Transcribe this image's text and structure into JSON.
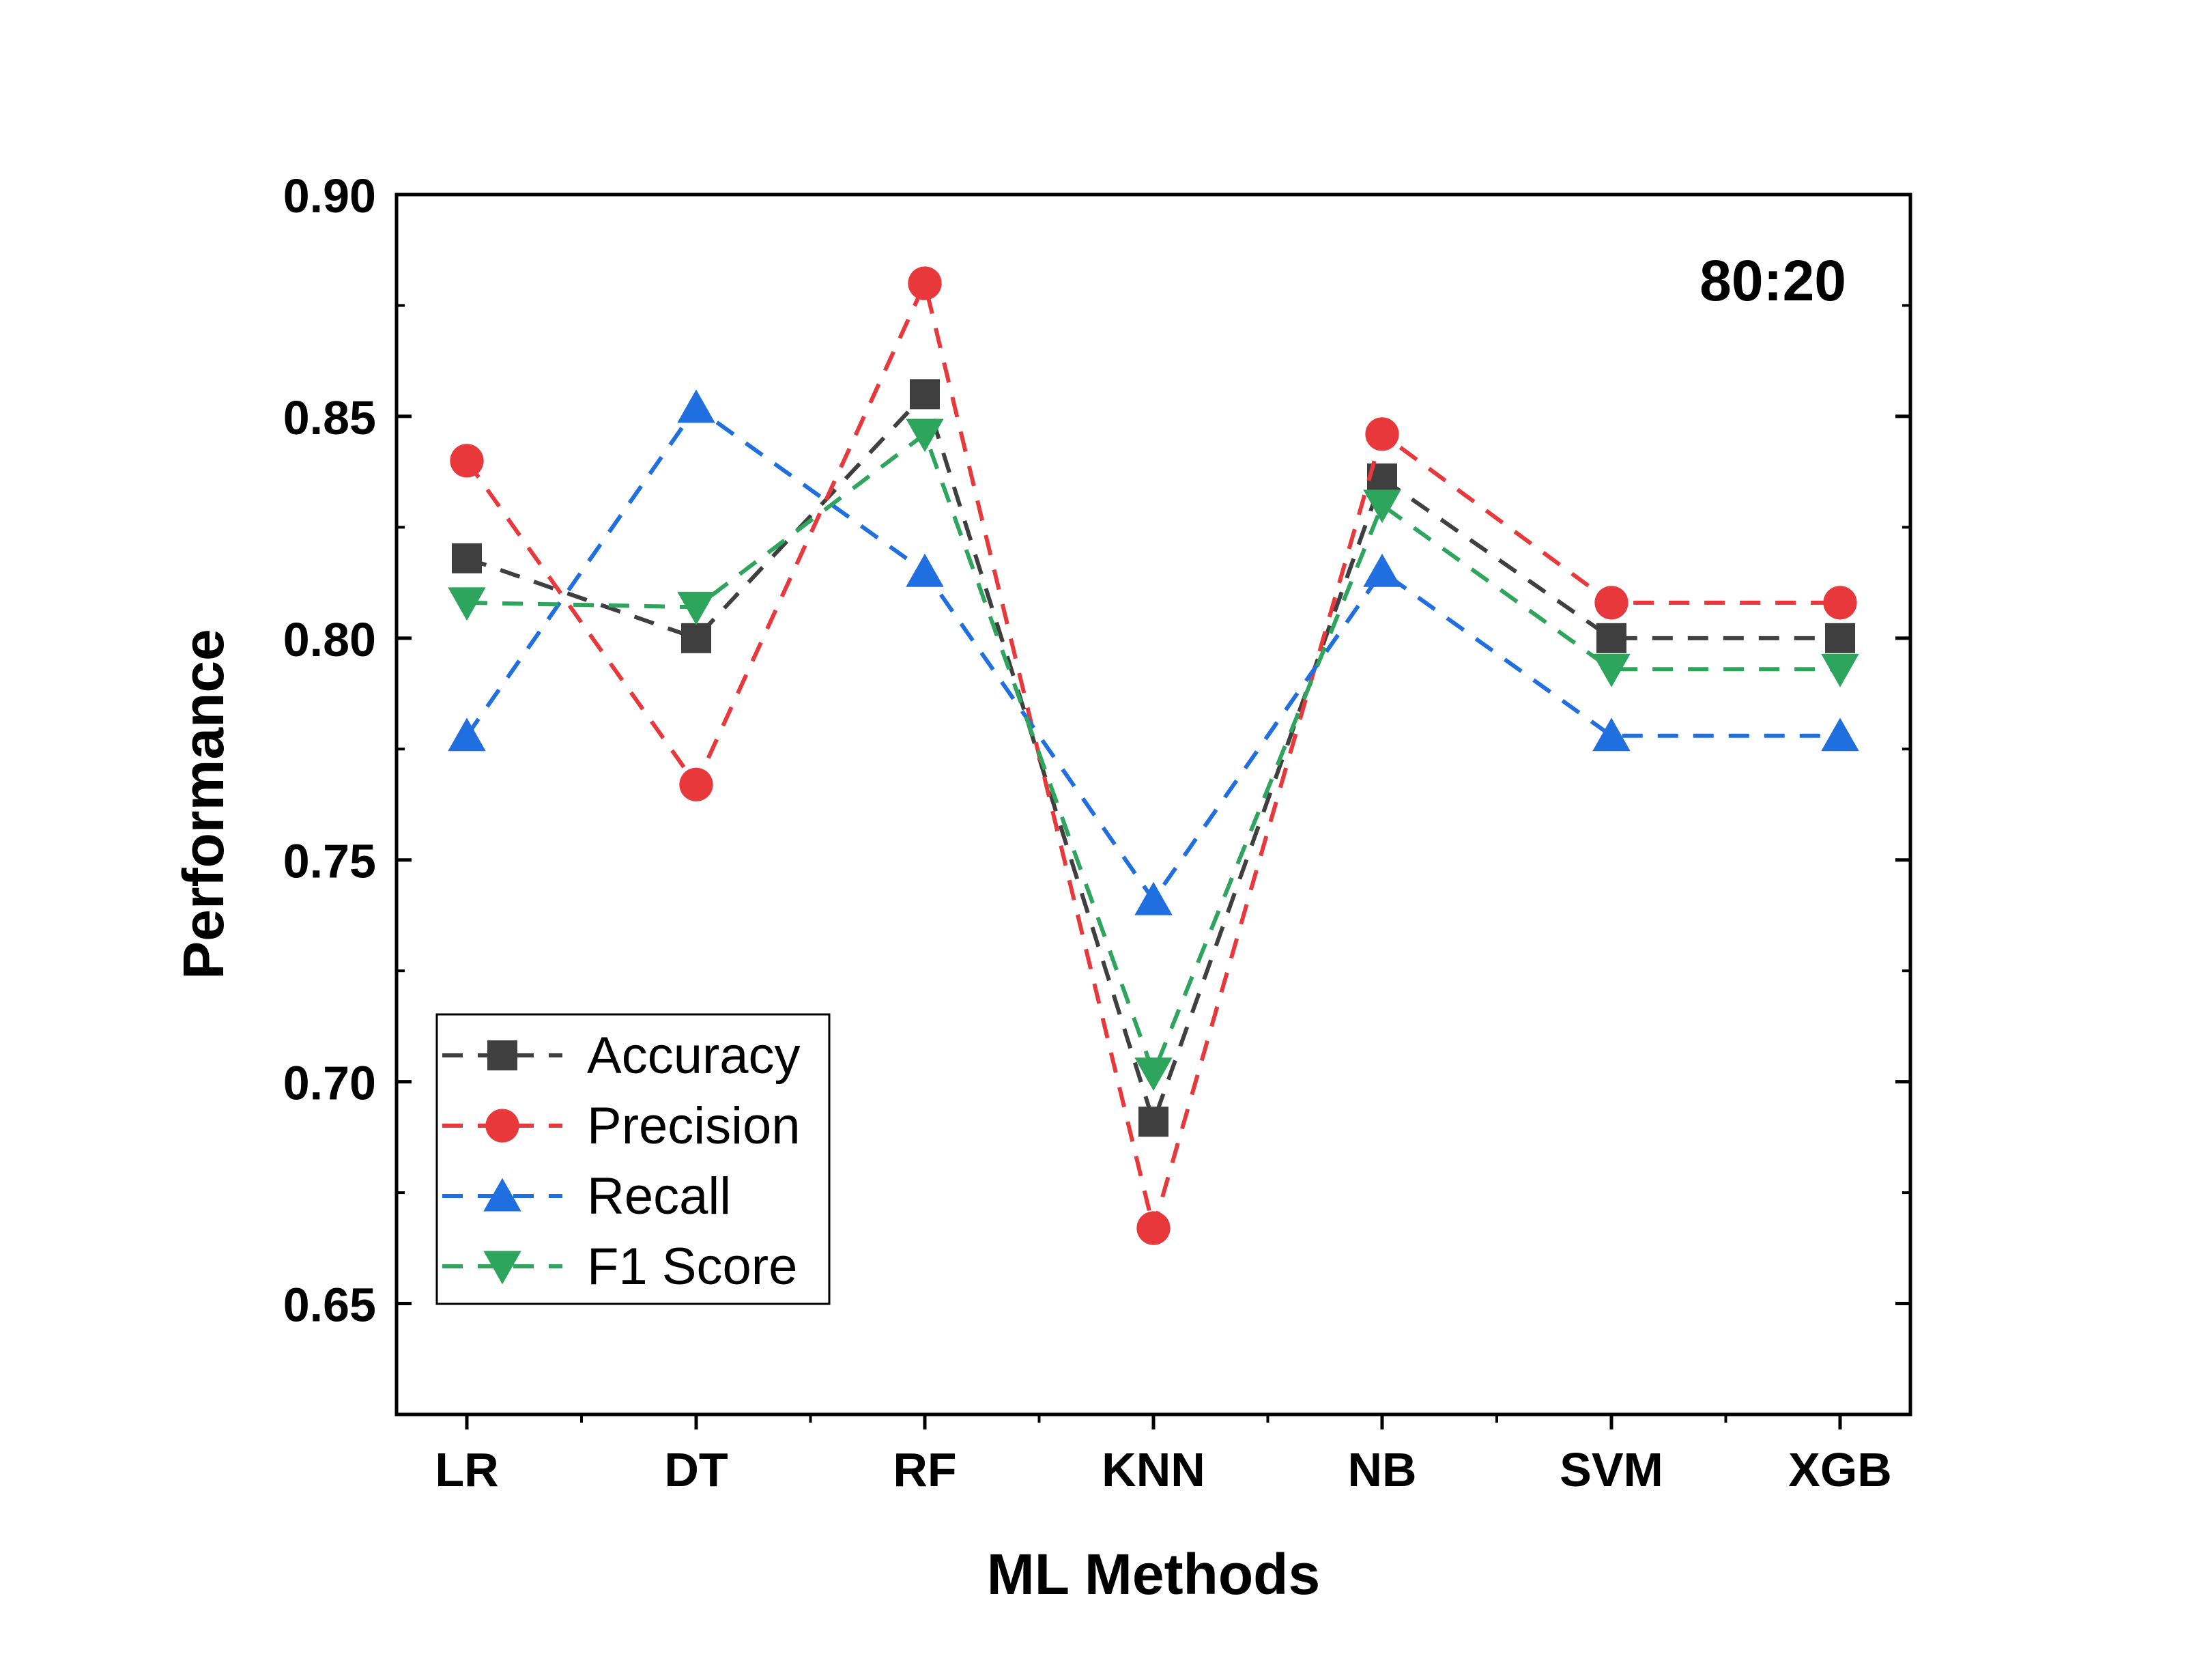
{
  "chart_data": {
    "type": "line",
    "categories": [
      "LR",
      "DT",
      "RF",
      "KNN",
      "NB",
      "SVM",
      "XGB"
    ],
    "xlabel": "ML Methods",
    "ylabel": "Performance",
    "ylim": [
      0.625,
      0.9
    ],
    "yticks": [
      0.65,
      0.7,
      0.75,
      0.8,
      0.85,
      0.9
    ],
    "ytick_labels": [
      "0.65",
      "0.70",
      "0.75",
      "0.80",
      "0.85",
      "0.90"
    ],
    "annotation": "80:20",
    "legend_position": "bottom-left",
    "grid": false,
    "series": [
      {
        "name": "Accuracy",
        "color": "#3f3f3f",
        "marker": "square",
        "line_style": "dashed",
        "values": [
          0.818,
          0.8,
          0.855,
          0.691,
          0.836,
          0.8,
          0.8
        ]
      },
      {
        "name": "Precision",
        "color": "#e8383b",
        "marker": "circle",
        "line_style": "dashed",
        "values": [
          0.84,
          0.767,
          0.88,
          0.667,
          0.846,
          0.808,
          0.808
        ]
      },
      {
        "name": "Recall",
        "color": "#1f6fe0",
        "marker": "triangle-up",
        "line_style": "dashed",
        "values": [
          0.778,
          0.852,
          0.815,
          0.741,
          0.815,
          0.778,
          0.778
        ]
      },
      {
        "name": "F1 Score",
        "color": "#2ea55c",
        "marker": "triangle-down",
        "line_style": "dashed",
        "values": [
          0.808,
          0.807,
          0.846,
          0.702,
          0.83,
          0.793,
          0.793
        ]
      }
    ]
  }
}
